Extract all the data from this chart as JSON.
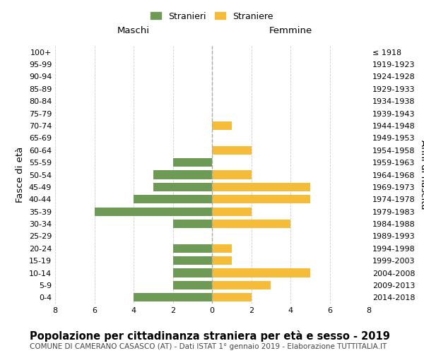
{
  "age_groups": [
    "100+",
    "95-99",
    "90-94",
    "85-89",
    "80-84",
    "75-79",
    "70-74",
    "65-69",
    "60-64",
    "55-59",
    "50-54",
    "45-49",
    "40-44",
    "35-39",
    "30-34",
    "25-29",
    "20-24",
    "15-19",
    "10-14",
    "5-9",
    "0-4"
  ],
  "birth_years": [
    "≤ 1918",
    "1919-1923",
    "1924-1928",
    "1929-1933",
    "1934-1938",
    "1939-1943",
    "1944-1948",
    "1949-1953",
    "1954-1958",
    "1959-1963",
    "1964-1968",
    "1969-1973",
    "1974-1978",
    "1979-1983",
    "1984-1988",
    "1989-1993",
    "1994-1998",
    "1999-2003",
    "2004-2008",
    "2009-2013",
    "2014-2018"
  ],
  "maschi": [
    0,
    0,
    0,
    0,
    0,
    0,
    0,
    0,
    0,
    2,
    3,
    3,
    4,
    6,
    2,
    0,
    2,
    2,
    2,
    2,
    4
  ],
  "femmine": [
    0,
    0,
    0,
    0,
    0,
    0,
    1,
    0,
    2,
    0,
    2,
    5,
    5,
    2,
    4,
    0,
    1,
    1,
    5,
    3,
    2
  ],
  "color_maschi": "#6d9b55",
  "color_femmine": "#f5bc3a",
  "xlim": 8,
  "title": "Popolazione per cittadinanza straniera per età e sesso - 2019",
  "subtitle": "COMUNE DI CAMERANO CASASCO (AT) - Dati ISTAT 1° gennaio 2019 - Elaborazione TUTTITALIA.IT",
  "ylabel_left": "Fasce di età",
  "ylabel_right": "Anni di nascita",
  "legend_maschi": "Stranieri",
  "legend_femmine": "Straniere",
  "label_maschi": "Maschi",
  "label_femmine": "Femmine",
  "background_color": "#ffffff",
  "grid_color": "#cccccc",
  "bar_height": 0.7,
  "title_fontsize": 10.5,
  "subtitle_fontsize": 7.5,
  "tick_fontsize": 8,
  "label_fontsize": 9.5,
  "legend_fontsize": 9
}
